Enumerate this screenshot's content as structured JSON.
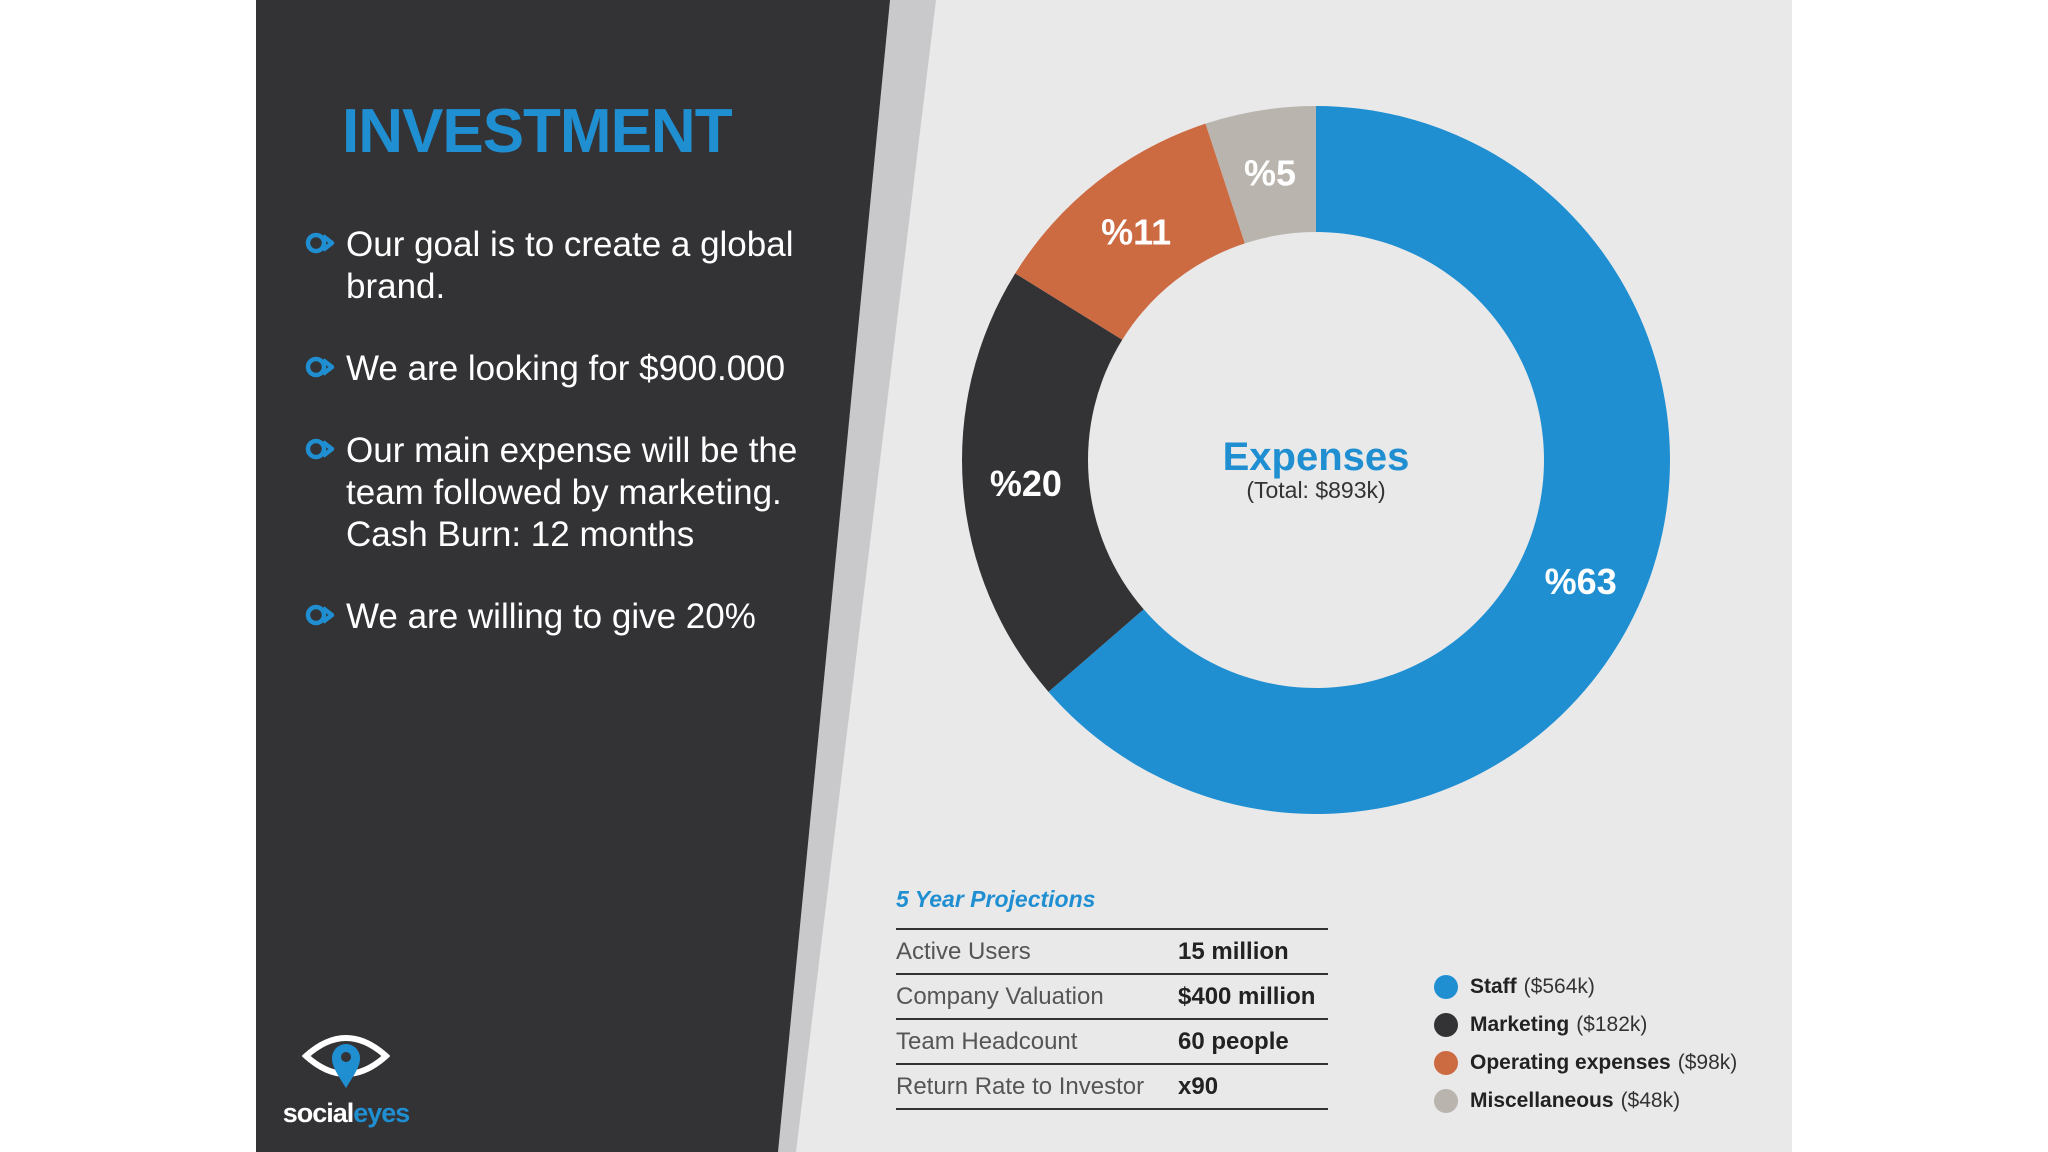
{
  "colors": {
    "accent": "#1f8fd2",
    "dark_panel": "#333234",
    "light_bg": "#e9e9e9",
    "stripe": "#c9c9cb"
  },
  "slide": {
    "title": "INVESTMENT",
    "bullets": [
      {
        "text": "Our goal is to create a global brand.",
        "extra": ""
      },
      {
        "text": "We are looking for $900.000",
        "extra": ""
      },
      {
        "text": "Our main expense will be the team followed by marketing.",
        "extra": "Cash Burn: 12 months"
      },
      {
        "text": "We are willing to give 20%",
        "extra": ""
      }
    ],
    "logo": {
      "part1": "social",
      "part2": "eyes",
      "icon": "eye-pin-icon"
    }
  },
  "chart_data": {
    "type": "pie",
    "donut": true,
    "center_title": "Expenses",
    "center_subtitle": "(Total: $893k)",
    "slices": [
      {
        "label": "%63",
        "value": 63,
        "color": "#1f8fd2",
        "label_color": "#ffffff"
      },
      {
        "label": "%20",
        "value": 20,
        "color": "#333234",
        "label_color": "#ffffff"
      },
      {
        "label": "%11",
        "value": 11,
        "color": "#cc6a42",
        "label_color": "#ffffff"
      },
      {
        "label": "%5",
        "value": 5,
        "color": "#b9b5ae",
        "label_color": "#ffffff"
      }
    ],
    "legend": [
      {
        "name": "Staff",
        "amount": "($564k)",
        "color": "#1f8fd2"
      },
      {
        "name": "Marketing",
        "amount": "($182k)",
        "color": "#333234"
      },
      {
        "name": "Operating expenses",
        "amount": "($98k)",
        "color": "#cc6a42"
      },
      {
        "name": "Miscellaneous",
        "amount": "($48k)",
        "color": "#b9b5ae"
      }
    ],
    "legend_position": "bottom-right"
  },
  "projections": {
    "title": "5 Year Projections",
    "rows": [
      {
        "label": "Active Users",
        "value": "15 million"
      },
      {
        "label": "Company Valuation",
        "value": "$400 million"
      },
      {
        "label": "Team Headcount",
        "value": "60 people"
      },
      {
        "label": "Return Rate to Investor",
        "value": "x90"
      }
    ]
  }
}
